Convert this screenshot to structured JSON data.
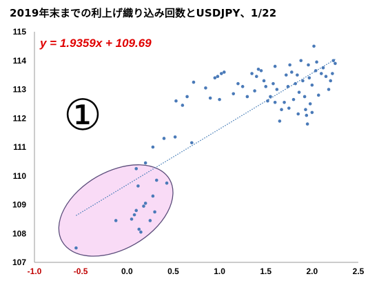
{
  "chart_data": {
    "type": "scatter",
    "title": "2019年末までの利上げ織り込み回数とUSDJPY、1/22",
    "xlim": [
      -1.0,
      2.5
    ],
    "ylim": [
      107,
      115
    ],
    "x_ticks": [
      -1.0,
      -0.5,
      0.0,
      0.5,
      1.0,
      1.5,
      2.0,
      2.5
    ],
    "y_ticks": [
      107,
      108,
      109,
      110,
      111,
      112,
      113,
      114,
      115
    ],
    "x_tick_labels": [
      "-1.0",
      "-0.5",
      "0.0",
      "0.5",
      "1.0",
      "1.5",
      "2.0",
      "2.5"
    ],
    "y_tick_labels": [
      "107",
      "108",
      "109",
      "110",
      "111",
      "112",
      "113",
      "114",
      "115"
    ],
    "negative_tick_color": "#c00000",
    "tick_color": "#000000",
    "point_color": "#4a7ab8",
    "grid": false,
    "trendline": {
      "type": "linear",
      "slope": 1.9359,
      "intercept": 109.69,
      "x_range": [
        -0.55,
        2.25
      ],
      "color": "#3f78b4",
      "style": "dotted"
    },
    "equation_label": "y = 1.9359x + 109.69",
    "equation_color": "#e00000",
    "marker_label": "①",
    "highlight_ellipse": {
      "center": [
        -0.12,
        108.8
      ],
      "fill": "#f9dbf6",
      "stroke": "#5a4c7a",
      "description": "cluster of low-rate-hike points"
    },
    "points": [
      [
        -0.55,
        107.5
      ],
      [
        -0.12,
        108.45
      ],
      [
        0.05,
        108.5
      ],
      [
        0.08,
        108.65
      ],
      [
        0.1,
        108.8
      ],
      [
        0.13,
        108.15
      ],
      [
        0.15,
        108.05
      ],
      [
        0.12,
        109.65
      ],
      [
        0.18,
        108.95
      ],
      [
        0.2,
        109.05
      ],
      [
        0.25,
        108.45
      ],
      [
        0.28,
        109.3
      ],
      [
        0.3,
        108.75
      ],
      [
        0.32,
        109.85
      ],
      [
        0.43,
        109.75
      ],
      [
        0.1,
        110.25
      ],
      [
        0.2,
        110.45
      ],
      [
        0.28,
        111.0
      ],
      [
        0.4,
        111.3
      ],
      [
        0.52,
        111.35
      ],
      [
        0.53,
        112.6
      ],
      [
        0.6,
        112.45
      ],
      [
        0.65,
        112.75
      ],
      [
        0.7,
        111.15
      ],
      [
        0.72,
        113.25
      ],
      [
        0.85,
        113.05
      ],
      [
        0.9,
        112.7
      ],
      [
        0.95,
        113.4
      ],
      [
        0.98,
        113.45
      ],
      [
        1.0,
        112.65
      ],
      [
        1.02,
        113.55
      ],
      [
        1.05,
        113.6
      ],
      [
        1.15,
        112.85
      ],
      [
        1.2,
        113.2
      ],
      [
        1.25,
        113.1
      ],
      [
        1.3,
        112.75
      ],
      [
        1.35,
        113.55
      ],
      [
        1.38,
        112.95
      ],
      [
        1.4,
        113.45
      ],
      [
        1.42,
        113.7
      ],
      [
        1.45,
        113.65
      ],
      [
        1.48,
        113.3
      ],
      [
        1.5,
        113.1
      ],
      [
        1.52,
        112.6
      ],
      [
        1.55,
        112.75
      ],
      [
        1.58,
        113.2
      ],
      [
        1.6,
        113.8
      ],
      [
        1.62,
        113.0
      ],
      [
        1.65,
        111.9
      ],
      [
        1.67,
        112.3
      ],
      [
        1.7,
        112.55
      ],
      [
        1.72,
        113.5
      ],
      [
        1.74,
        113.1
      ],
      [
        1.76,
        113.85
      ],
      [
        1.78,
        113.6
      ],
      [
        1.8,
        112.65
      ],
      [
        1.82,
        113.2
      ],
      [
        1.84,
        113.5
      ],
      [
        1.86,
        112.9
      ],
      [
        1.88,
        114.0
      ],
      [
        1.9,
        113.3
      ],
      [
        1.92,
        112.75
      ],
      [
        1.93,
        112.3
      ],
      [
        1.94,
        112.1
      ],
      [
        1.95,
        111.8
      ],
      [
        1.96,
        113.85
      ],
      [
        1.97,
        113.4
      ],
      [
        1.98,
        112.5
      ],
      [
        2.0,
        113.15
      ],
      [
        2.02,
        114.5
      ],
      [
        2.04,
        113.65
      ],
      [
        2.05,
        113.95
      ],
      [
        2.07,
        112.8
      ],
      [
        2.1,
        113.55
      ],
      [
        2.12,
        113.75
      ],
      [
        2.15,
        113.45
      ],
      [
        2.18,
        113.0
      ],
      [
        2.2,
        113.3
      ],
      [
        2.22,
        113.55
      ],
      [
        2.25,
        113.9
      ],
      [
        2.23,
        114.0
      ],
      [
        1.85,
        112.15
      ],
      [
        1.75,
        112.35
      ],
      [
        2.0,
        112.2
      ],
      [
        1.6,
        112.55
      ]
    ]
  }
}
